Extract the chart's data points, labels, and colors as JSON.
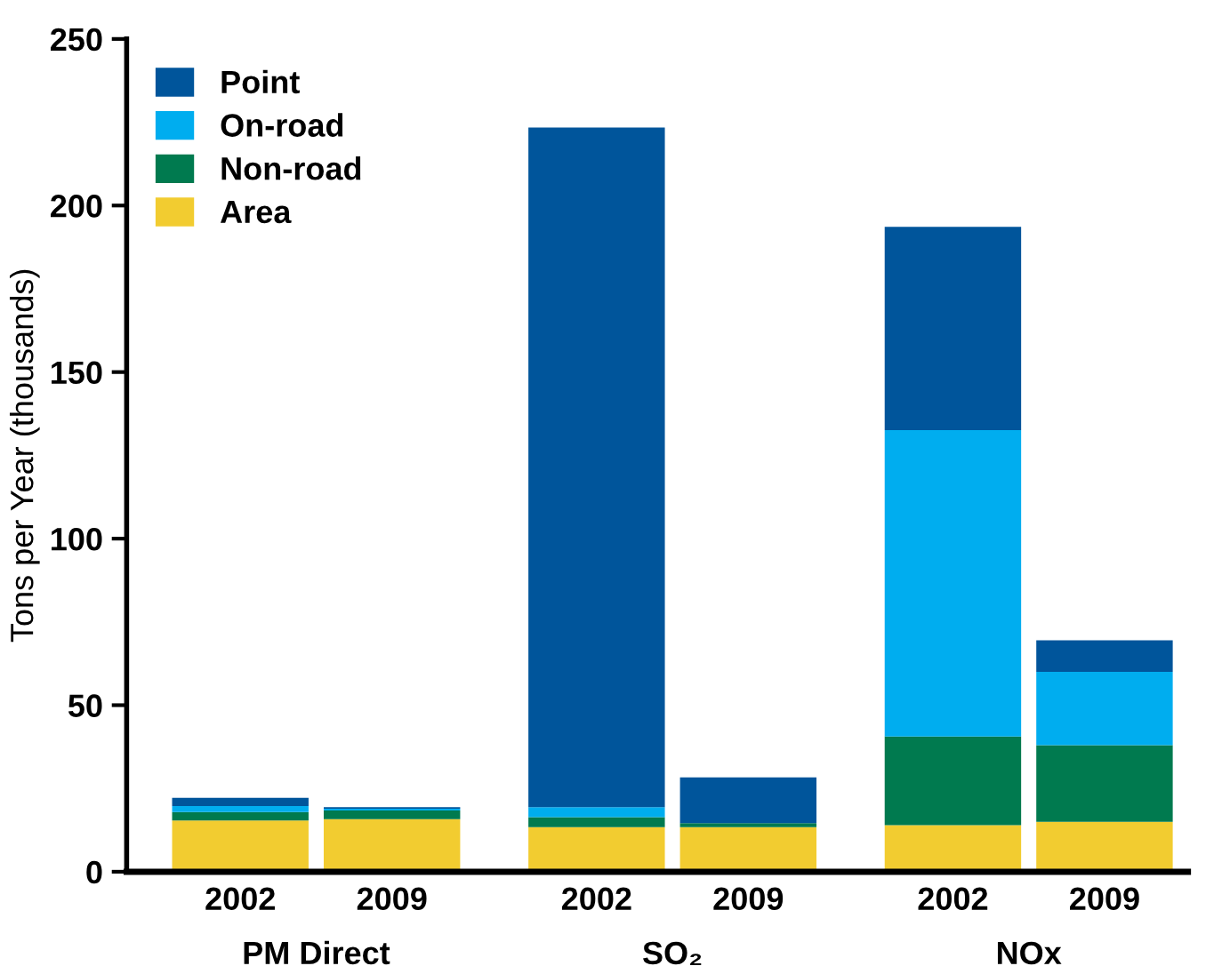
{
  "chart_data": {
    "type": "bar",
    "stacked": true,
    "ylabel": "Tons per Year (thousands)",
    "categories": [
      "2002",
      "2009",
      "2002",
      "2009",
      "2002",
      "2009"
    ],
    "annotations": [
      "PM Direct",
      "SO₂",
      "NOx"
    ],
    "series": [
      {
        "name": "Area",
        "color": "#f2cc30",
        "values": [
          15.4,
          15.8,
          13.4,
          13.4,
          14,
          15
        ]
      },
      {
        "name": "Non-road",
        "color": "#007a4f",
        "values": [
          2.5,
          2.6,
          3,
          1.2,
          26.6,
          23
        ]
      },
      {
        "name": "On-road",
        "color": "#00adef",
        "values": [
          1.8,
          0.5,
          3,
          0,
          92,
          22
        ]
      },
      {
        "name": "Point",
        "color": "#00559b",
        "values": [
          2.5,
          0.5,
          204,
          13.7,
          61,
          9.5
        ]
      }
    ],
    "ylim": [
      0,
      250
    ],
    "yticks": [
      0,
      50,
      100,
      150,
      200,
      250
    ],
    "grid": false,
    "legend": "top left"
  }
}
